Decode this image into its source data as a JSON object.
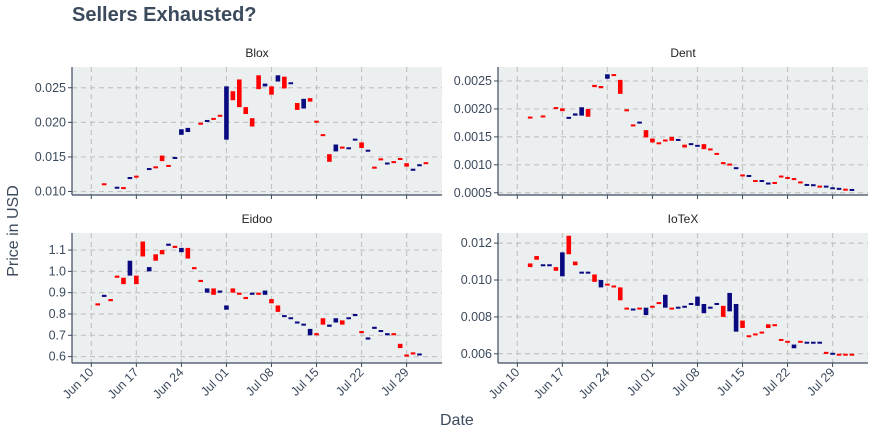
{
  "title": "Sellers Exhausted?",
  "axis": {
    "x_label": "Date",
    "y_label": "Price in USD"
  },
  "colors": {
    "up": "#0a0a80",
    "down": "#ff0000",
    "panel_bg": "#eceff0",
    "grid": "#c4c4c4",
    "axis": "#3b4a5c",
    "text": "#3b4a5c"
  },
  "x_ticks": [
    {
      "label": "Jun 10",
      "day": 10
    },
    {
      "label": "Jun 17",
      "day": 17
    },
    {
      "label": "Jun 24",
      "day": 24
    },
    {
      "label": "Jul 01",
      "day": 31
    },
    {
      "label": "Jul 08",
      "day": 38
    },
    {
      "label": "Jul 15",
      "day": 45
    },
    {
      "label": "Jul 22",
      "day": 52
    },
    {
      "label": "Jul 29",
      "day": 59
    }
  ],
  "chart_data": [
    {
      "type": "candlestick",
      "title": "Blox",
      "ylim": [
        0.0095,
        0.028
      ],
      "yticks": [
        0.01,
        0.015,
        0.02,
        0.025
      ],
      "ytick_labels": [
        "0.010",
        "0.015",
        "0.020",
        "0.025"
      ],
      "x": [
        12,
        14,
        15,
        16,
        17,
        19,
        20,
        21,
        22,
        23,
        24,
        25,
        27,
        28,
        29,
        30,
        31,
        32,
        33,
        34,
        35,
        36,
        37,
        38,
        39,
        40,
        41,
        42,
        43,
        44,
        45,
        46,
        47,
        48,
        49,
        50,
        51,
        52,
        53,
        54,
        55,
        56,
        57,
        58,
        59,
        60,
        61,
        62
      ],
      "open": [
        0.0111,
        0.0105,
        0.0106,
        0.0118,
        0.0122,
        0.0132,
        0.0136,
        0.0152,
        0.0138,
        0.0148,
        0.0182,
        0.0186,
        0.0199,
        0.0202,
        0.0206,
        0.021,
        0.0175,
        0.0245,
        0.0262,
        0.0222,
        0.0206,
        0.0268,
        0.0252,
        0.0252,
        0.0259,
        0.0266,
        0.0256,
        0.0228,
        0.022,
        0.0235,
        0.0202,
        0.0182,
        0.0154,
        0.0158,
        0.0165,
        0.0162,
        0.0175,
        0.0171,
        0.0158,
        0.0136,
        0.0147,
        0.014,
        0.0143,
        0.0148,
        0.0141,
        0.013,
        0.0137,
        0.0142
      ],
      "close": [
        0.011,
        0.0106,
        0.0104,
        0.0121,
        0.0121,
        0.0133,
        0.0134,
        0.0144,
        0.0136,
        0.0149,
        0.019,
        0.0192,
        0.0197,
        0.0202,
        0.0204,
        0.0209,
        0.0252,
        0.0232,
        0.0222,
        0.0212,
        0.0194,
        0.0248,
        0.0256,
        0.024,
        0.0268,
        0.0249,
        0.0257,
        0.0218,
        0.0234,
        0.023,
        0.02,
        0.0181,
        0.0143,
        0.0168,
        0.0162,
        0.0163,
        0.0175,
        0.0163,
        0.016,
        0.0133,
        0.0146,
        0.0141,
        0.0142,
        0.0146,
        0.0136,
        0.0133,
        0.0139,
        0.014
      ]
    },
    {
      "type": "candlestick",
      "title": "Dent",
      "ylim": [
        0.00046,
        0.00275
      ],
      "yticks": [
        0.0005,
        0.001,
        0.0015,
        0.002,
        0.0025
      ],
      "ytick_labels": [
        "0.0005",
        "0.0010",
        "0.0015",
        "0.0020",
        "0.0025"
      ],
      "x": [
        12,
        14,
        16,
        17,
        18,
        19,
        20,
        21,
        22,
        23,
        24,
        25,
        26,
        27,
        28,
        29,
        30,
        31,
        32,
        33,
        34,
        35,
        36,
        37,
        38,
        39,
        40,
        41,
        42,
        43,
        44,
        45,
        46,
        47,
        48,
        49,
        50,
        51,
        52,
        53,
        54,
        55,
        56,
        57,
        58,
        59,
        60,
        61,
        62
      ],
      "open": [
        0.00185,
        0.00187,
        0.00202,
        0.00201,
        0.00183,
        0.00188,
        0.00188,
        0.002,
        0.00243,
        0.00241,
        0.00254,
        0.00262,
        0.00252,
        0.00198,
        0.00171,
        0.00175,
        0.00162,
        0.00147,
        0.00139,
        0.00144,
        0.0015,
        0.00143,
        0.00136,
        0.00136,
        0.00133,
        0.00137,
        0.00128,
        0.0012,
        0.00104,
        0.00101,
        0.00094,
        0.00082,
        0.0008,
        0.00072,
        0.00071,
        0.00066,
        0.00068,
        0.0008,
        0.00077,
        0.00075,
        0.00069,
        0.00064,
        0.00063,
        0.00062,
        0.00061,
        0.00058,
        0.00057,
        0.00056,
        0.00055
      ],
      "close": [
        0.00184,
        0.00186,
        0.00201,
        0.00196,
        0.00185,
        0.00192,
        0.00203,
        0.00186,
        0.00239,
        0.00237,
        0.00262,
        0.00259,
        0.00227,
        0.00197,
        0.0017,
        0.00176,
        0.00149,
        0.0014,
        0.00138,
        0.00143,
        0.00143,
        0.00146,
        0.00131,
        0.00138,
        0.00135,
        0.00128,
        0.00127,
        0.00119,
        0.00102,
        0.001,
        0.00094,
        0.0008,
        0.0008,
        0.0007,
        0.00071,
        0.00067,
        0.00067,
        0.00078,
        0.00076,
        0.00074,
        0.00068,
        0.00064,
        0.00064,
        0.0006,
        0.00061,
        0.00058,
        0.00057,
        0.00055,
        0.00055
      ]
    },
    {
      "type": "candlestick",
      "title": "Eidoo",
      "ylim": [
        0.57,
        1.18
      ],
      "yticks": [
        0.6,
        0.7,
        0.8,
        0.9,
        1.0,
        1.1
      ],
      "ytick_labels": [
        "0.6",
        "0.7",
        "0.8",
        "0.9",
        "1.0",
        "1.1"
      ],
      "x": [
        11,
        12,
        13,
        14,
        15,
        16,
        17,
        18,
        19,
        20,
        21,
        22,
        23,
        24,
        25,
        26,
        27,
        28,
        29,
        30,
        31,
        32,
        33,
        34,
        35,
        36,
        37,
        38,
        39,
        40,
        41,
        42,
        43,
        44,
        45,
        46,
        47,
        48,
        49,
        50,
        51,
        52,
        53,
        54,
        55,
        56,
        57,
        58,
        59,
        60,
        61
      ],
      "open": [
        0.85,
        0.88,
        0.87,
        0.98,
        0.97,
        0.98,
        0.98,
        1.14,
        1.0,
        1.08,
        1.1,
        1.12,
        1.12,
        1.09,
        1.11,
        1.02,
        0.96,
        0.9,
        0.92,
        0.9,
        0.82,
        0.92,
        0.9,
        0.88,
        0.89,
        0.9,
        0.89,
        0.87,
        0.84,
        0.79,
        0.78,
        0.76,
        0.75,
        0.7,
        0.71,
        0.78,
        0.74,
        0.76,
        0.77,
        0.78,
        0.79,
        0.72,
        0.68,
        0.73,
        0.72,
        0.7,
        0.71,
        0.66,
        0.61,
        0.62,
        0.61
      ],
      "close": [
        0.84,
        0.89,
        0.86,
        0.97,
        0.94,
        1.05,
        0.94,
        1.07,
        1.02,
        1.05,
        1.08,
        1.13,
        1.11,
        1.11,
        1.06,
        1.01,
        0.95,
        0.92,
        0.89,
        0.91,
        0.84,
        0.9,
        0.89,
        0.87,
        0.9,
        0.89,
        0.91,
        0.85,
        0.81,
        0.79,
        0.78,
        0.76,
        0.75,
        0.73,
        0.7,
        0.75,
        0.75,
        0.78,
        0.75,
        0.78,
        0.8,
        0.71,
        0.69,
        0.74,
        0.72,
        0.71,
        0.7,
        0.64,
        0.6,
        0.61,
        0.61
      ]
    },
    {
      "type": "candlestick",
      "title": "IoTeX",
      "ylim": [
        0.0055,
        0.01255
      ],
      "yticks": [
        0.006,
        0.008,
        0.01,
        0.012
      ],
      "ytick_labels": [
        "0.006",
        "0.008",
        "0.010",
        "0.012"
      ],
      "x": [
        12,
        13,
        14,
        15,
        16,
        17,
        18,
        19,
        20,
        21,
        22,
        23,
        24,
        25,
        26,
        27,
        28,
        29,
        30,
        31,
        32,
        33,
        34,
        35,
        36,
        37,
        38,
        39,
        40,
        41,
        42,
        43,
        44,
        45,
        46,
        47,
        48,
        49,
        50,
        51,
        52,
        53,
        54,
        55,
        56,
        57,
        58,
        59,
        60,
        61,
        62
      ],
      "open": [
        0.0109,
        0.0113,
        0.0108,
        0.0108,
        0.0107,
        0.0102,
        0.0124,
        0.011,
        0.0104,
        0.0104,
        0.0103,
        0.0096,
        0.0098,
        0.0097,
        0.0096,
        0.0085,
        0.0084,
        0.0085,
        0.0081,
        0.0086,
        0.0088,
        0.0085,
        0.0085,
        0.0085,
        0.0085,
        0.0087,
        0.0086,
        0.0082,
        0.0085,
        0.0087,
        0.0086,
        0.0083,
        0.0072,
        0.0078,
        0.007,
        0.0071,
        0.0072,
        0.0076,
        0.0076,
        0.0068,
        0.0067,
        0.0063,
        0.0067,
        0.0066,
        0.0066,
        0.0066,
        0.0061,
        0.006,
        0.006,
        0.006,
        0.006
      ],
      "close": [
        0.0107,
        0.0111,
        0.0108,
        0.0108,
        0.0105,
        0.0115,
        0.0114,
        0.0108,
        0.0104,
        0.0104,
        0.0099,
        0.01,
        0.0097,
        0.0096,
        0.0089,
        0.0084,
        0.0084,
        0.0084,
        0.0085,
        0.0085,
        0.0087,
        0.0092,
        0.0084,
        0.0085,
        0.0086,
        0.0087,
        0.0091,
        0.0087,
        0.0085,
        0.0087,
        0.008,
        0.0093,
        0.0087,
        0.0074,
        0.0069,
        0.007,
        0.0071,
        0.0074,
        0.0075,
        0.0067,
        0.0066,
        0.0065,
        0.0066,
        0.0066,
        0.0066,
        0.0066,
        0.006,
        0.006,
        0.0059,
        0.0059,
        0.0059
      ]
    }
  ]
}
